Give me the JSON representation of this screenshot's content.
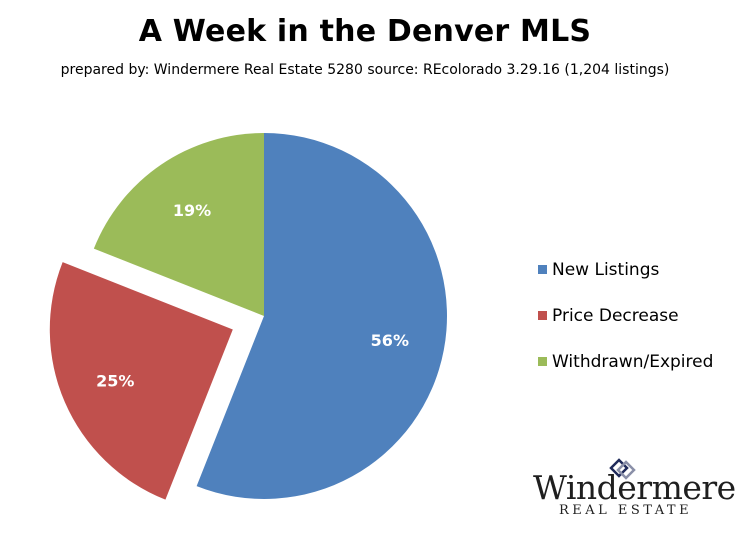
{
  "chart_data": {
    "type": "pie",
    "title": "A Week in the Denver MLS",
    "subtitle": "prepared by: Windermere  Real Estate 5280  source: REcolorado  3.29.16 (1,204 listings)",
    "slices": [
      {
        "label": "New Listings",
        "value": 56,
        "display": "56%",
        "color": "#4F81BD",
        "exploded": false
      },
      {
        "label": "Price Decrease",
        "value": 25,
        "display": "25%",
        "color": "#C0504D",
        "exploded": true
      },
      {
        "label": "Withdrawn/Expired",
        "value": 19,
        "display": "19%",
        "color": "#9BBB59",
        "exploded": false
      }
    ],
    "legend_position": "right"
  },
  "logo": {
    "wordmark": "Windermere",
    "subtext": "REAL ESTATE",
    "icon": "windermere-diamond-icon"
  }
}
